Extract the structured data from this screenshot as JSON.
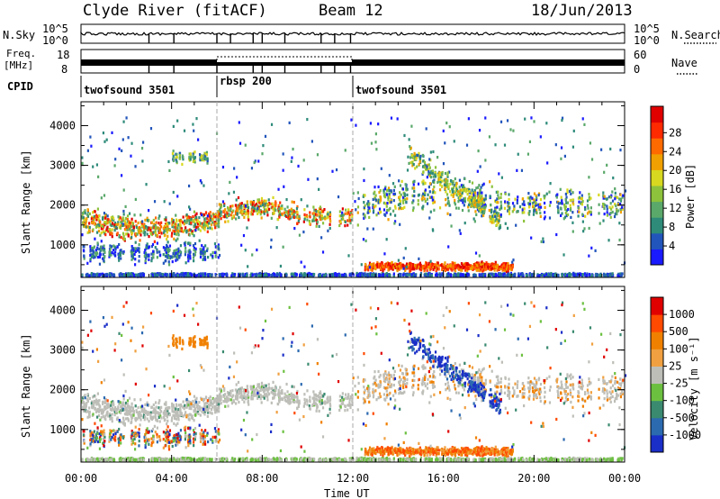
{
  "header": {
    "station": "Clyde River (fitACF)",
    "beam": "Beam 12",
    "date": "18/Jun/2013"
  },
  "status_panels": {
    "nsky": {
      "label": "N.Sky",
      "ticks": [
        "10^5",
        "10^0"
      ]
    },
    "nsearch": {
      "label": "N.Search",
      "ticks": [
        "10^5",
        "10^0"
      ]
    },
    "freq": {
      "label_top": "Freq.",
      "label_unit": "[MHz]",
      "ticks": [
        "18",
        "8"
      ]
    },
    "nave": {
      "label": "Nave",
      "ticks": [
        "60",
        "0"
      ]
    },
    "cpid": {
      "label": "CPID",
      "segments": [
        {
          "name": "twofsound 3501",
          "start_hour": 0,
          "end_hour": 6
        },
        {
          "name": "rbsp 200",
          "start_hour": 6,
          "end_hour": 12
        },
        {
          "name": "twofsound 3501",
          "start_hour": 12,
          "end_hour": 24
        }
      ]
    }
  },
  "chart_data": [
    {
      "type": "heatmap",
      "panel": "power",
      "ylabel": "Slant Range [km]",
      "y_ticks": [
        "1000",
        "2000",
        "3000",
        "4000"
      ],
      "ylim": [
        180,
        4600
      ],
      "xlim": [
        0,
        24
      ],
      "colorbar": {
        "label": "Power [dB]",
        "ticks": [
          "4",
          "8",
          "12",
          "16",
          "20",
          "24",
          "28"
        ],
        "colors": [
          "#1a1aff",
          "#2255bb",
          "#2e8b7a",
          "#5aa86a",
          "#8cc23c",
          "#d8d820",
          "#f0a000",
          "#ff6a00",
          "#ff2a00",
          "#e00000"
        ]
      }
    },
    {
      "type": "heatmap",
      "panel": "velocity",
      "ylabel": "Slant Range [km]",
      "y_ticks": [
        "1000",
        "2000",
        "3000",
        "4000"
      ],
      "ylim": [
        180,
        4600
      ],
      "xlim": [
        0,
        24
      ],
      "xlabel": "Time UT",
      "x_ticks": [
        "00:00",
        "04:00",
        "08:00",
        "12:00",
        "16:00",
        "20:00",
        "00:00"
      ],
      "colorbar": {
        "label": "Velocity [m s⁻¹]",
        "ticks": [
          "1000",
          "500",
          "100",
          "25",
          "-25",
          "-100",
          "-500",
          "-1000"
        ],
        "colors": [
          "#1a2ec8",
          "#2c6ab0",
          "#3a8a70",
          "#6cc040",
          "#bebeb8",
          "#f0a040",
          "#f08000",
          "#ff4a00",
          "#e00000"
        ]
      }
    }
  ]
}
